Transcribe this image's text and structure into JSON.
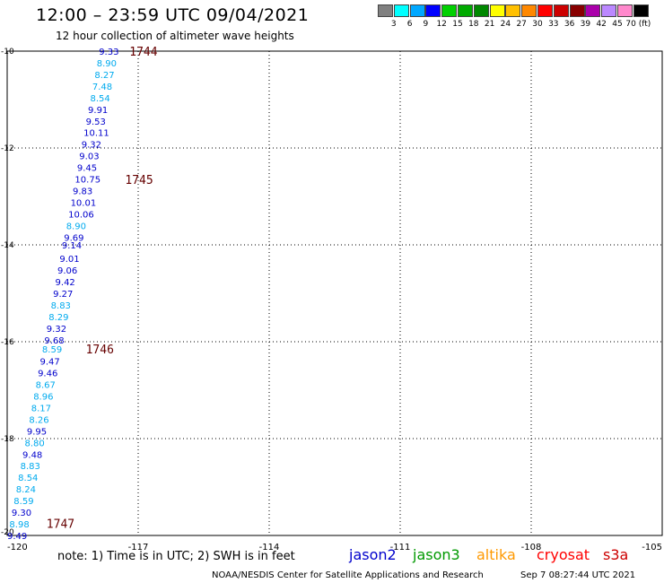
{
  "header": {
    "title": "12:00 – 23:59 UTC 09/04/2021",
    "subtitle": "12 hour collection of altimeter wave heights"
  },
  "legend": {
    "colors": [
      "#808080",
      "#00ffff",
      "#00a8ff",
      "#0000ff",
      "#00d000",
      "#00aa00",
      "#008800",
      "#ffff00",
      "#ffc000",
      "#ff8800",
      "#ff0000",
      "#cc0000",
      "#880000",
      "#aa00aa",
      "#bb88ff",
      "#ff88cc",
      "#000000"
    ],
    "labels": [
      "3",
      "6",
      "9",
      "12",
      "15",
      "18",
      "21",
      "24",
      "27",
      "30",
      "33",
      "36",
      "39",
      "42",
      "45",
      "70 (ft)"
    ]
  },
  "map": {
    "lon_ticks": [
      "-120",
      "-117",
      "-114",
      "-111",
      "-108",
      "-105"
    ],
    "lat_ticks": [
      "-10",
      "-12",
      "-14",
      "-16",
      "-18",
      "-20"
    ],
    "lon_values": [
      -120,
      -117,
      -114,
      -111,
      -108,
      -105
    ],
    "lat_values": [
      -10,
      -12,
      -14,
      -16,
      -18,
      -20
    ],
    "time_labels": [
      {
        "text": "1744",
        "lat": -10.0,
        "lon": -117.2
      },
      {
        "text": "1745",
        "lat": -12.65,
        "lon": -117.3
      },
      {
        "text": "1746",
        "lat": -16.15,
        "lon": -118.2
      },
      {
        "text": "1747",
        "lat": -19.75,
        "lon": -119.1
      }
    ],
    "observations": [
      {
        "v": "9.33",
        "lat": -10.0,
        "lon": -117.9,
        "c": "#0000cc"
      },
      {
        "v": "8.90",
        "lat": -10.24,
        "lon": -117.95,
        "c": "#00aaee"
      },
      {
        "v": "8.27",
        "lat": -10.48,
        "lon": -118.0,
        "c": "#00aaee"
      },
      {
        "v": "7.48",
        "lat": -10.72,
        "lon": -118.05,
        "c": "#00aaee"
      },
      {
        "v": "8.54",
        "lat": -10.96,
        "lon": -118.1,
        "c": "#00aaee"
      },
      {
        "v": "9.91",
        "lat": -11.2,
        "lon": -118.15,
        "c": "#0000cc"
      },
      {
        "v": "9.53",
        "lat": -11.44,
        "lon": -118.2,
        "c": "#0000cc"
      },
      {
        "v": "10.11",
        "lat": -11.68,
        "lon": -118.25,
        "c": "#0000cc"
      },
      {
        "v": "9.32",
        "lat": -11.92,
        "lon": -118.3,
        "c": "#0000cc"
      },
      {
        "v": "9.03",
        "lat": -12.16,
        "lon": -118.35,
        "c": "#0000cc"
      },
      {
        "v": "9.45",
        "lat": -12.4,
        "lon": -118.4,
        "c": "#0000cc"
      },
      {
        "v": "10.75",
        "lat": -12.64,
        "lon": -118.45,
        "c": "#0000cc"
      },
      {
        "v": "9.83",
        "lat": -12.88,
        "lon": -118.5,
        "c": "#0000cc"
      },
      {
        "v": "10.01",
        "lat": -13.12,
        "lon": -118.55,
        "c": "#0000cc"
      },
      {
        "v": "10.06",
        "lat": -13.36,
        "lon": -118.6,
        "c": "#0000cc"
      },
      {
        "v": "8.90",
        "lat": -13.6,
        "lon": -118.65,
        "c": "#00aaee"
      },
      {
        "v": "9.69",
        "lat": -13.84,
        "lon": -118.7,
        "c": "#0000cc"
      },
      {
        "v": "9.14",
        "lat": -14.0,
        "lon": -118.75,
        "c": "#0000cc"
      },
      {
        "v": "9.01",
        "lat": -14.28,
        "lon": -118.8,
        "c": "#0000cc"
      },
      {
        "v": "9.06",
        "lat": -14.52,
        "lon": -118.85,
        "c": "#0000cc"
      },
      {
        "v": "9.42",
        "lat": -14.76,
        "lon": -118.9,
        "c": "#0000cc"
      },
      {
        "v": "9.27",
        "lat": -15.0,
        "lon": -118.95,
        "c": "#0000cc"
      },
      {
        "v": "8.83",
        "lat": -15.24,
        "lon": -119.0,
        "c": "#00aaee"
      },
      {
        "v": "8.29",
        "lat": -15.48,
        "lon": -119.05,
        "c": "#00aaee"
      },
      {
        "v": "9.32",
        "lat": -15.72,
        "lon": -119.1,
        "c": "#0000cc"
      },
      {
        "v": "9.68",
        "lat": -15.96,
        "lon": -119.15,
        "c": "#0000cc"
      },
      {
        "v": "8.59",
        "lat": -16.15,
        "lon": -119.2,
        "c": "#00aaee"
      },
      {
        "v": "9.47",
        "lat": -16.4,
        "lon": -119.25,
        "c": "#0000cc"
      },
      {
        "v": "9.46",
        "lat": -16.64,
        "lon": -119.3,
        "c": "#0000cc"
      },
      {
        "v": "8.67",
        "lat": -16.88,
        "lon": -119.35,
        "c": "#00aaee"
      },
      {
        "v": "8.96",
        "lat": -17.12,
        "lon": -119.4,
        "c": "#00aaee"
      },
      {
        "v": "8.17",
        "lat": -17.36,
        "lon": -119.45,
        "c": "#00aaee"
      },
      {
        "v": "8.26",
        "lat": -17.6,
        "lon": -119.5,
        "c": "#00aaee"
      },
      {
        "v": "9.95",
        "lat": -17.84,
        "lon": -119.55,
        "c": "#0000cc"
      },
      {
        "v": "8.80",
        "lat": -18.08,
        "lon": -119.6,
        "c": "#00aaee"
      },
      {
        "v": "9.48",
        "lat": -18.32,
        "lon": -119.65,
        "c": "#0000cc"
      },
      {
        "v": "8.83",
        "lat": -18.56,
        "lon": -119.7,
        "c": "#00aaee"
      },
      {
        "v": "8.54",
        "lat": -18.8,
        "lon": -119.75,
        "c": "#00aaee"
      },
      {
        "v": "8.24",
        "lat": -19.04,
        "lon": -119.8,
        "c": "#00aaee"
      },
      {
        "v": "8.59",
        "lat": -19.28,
        "lon": -119.85,
        "c": "#00aaee"
      },
      {
        "v": "9.30",
        "lat": -19.52,
        "lon": -119.9,
        "c": "#0000cc"
      },
      {
        "v": "8.98",
        "lat": -19.76,
        "lon": -119.95,
        "c": "#00aaee"
      },
      {
        "v": "9.49",
        "lat": -20.0,
        "lon": -120.0,
        "c": "#0000cc"
      }
    ]
  },
  "footer": {
    "note": "note:  1) Time is in UTC;  2) SWH is in feet",
    "satellites": [
      {
        "name": "jason2",
        "color": "#0000cc"
      },
      {
        "name": "jason3",
        "color": "#009900"
      },
      {
        "name": "altika",
        "color": "#ff9900"
      },
      {
        "name": "cryosat",
        "color": "#ff0000"
      },
      {
        "name": "s3a",
        "color": "#cc0000"
      }
    ],
    "credit": "NOAA/NESDIS Center for Satellite Applications and Research",
    "timestamp": "Sep  7 08:27:44 UTC 2021"
  }
}
